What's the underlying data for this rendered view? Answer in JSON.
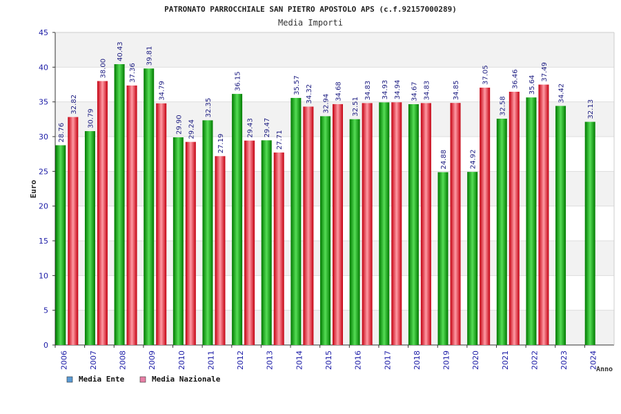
{
  "chart_data": {
    "type": "bar",
    "title": "PATRONATO PARROCCHIALE SAN PIETRO APOSTOLO APS (c.f.92157000289)",
    "subtitle": "Media Importi",
    "ylabel": "Euro",
    "xlabel": "Anno",
    "ylim": [
      0,
      45
    ],
    "yticks": [
      "0",
      "5",
      "10",
      "15",
      "20",
      "25",
      "30",
      "35",
      "40",
      "45"
    ],
    "categories": [
      "2006",
      "2007",
      "2008",
      "2009",
      "2010",
      "2011",
      "2012",
      "2013",
      "2014",
      "2015",
      "2016",
      "2017",
      "2018",
      "2019",
      "2020",
      "2021",
      "2022",
      "2023",
      "2024"
    ],
    "series": [
      {
        "name": "Media Ente",
        "values": [
          28.76,
          30.79,
          40.43,
          39.81,
          29.9,
          32.35,
          36.15,
          29.47,
          35.57,
          32.94,
          32.51,
          34.93,
          34.67,
          24.88,
          24.92,
          32.58,
          35.64,
          34.42,
          32.13
        ],
        "labels": [
          "28.76",
          "30.79",
          "40.43",
          "39.81",
          "29.90",
          "32.35",
          "36.15",
          "29.47",
          "35.57",
          "32.94",
          "32.51",
          "34.93",
          "34.67",
          "24.88",
          "24.92",
          "32.58",
          "35.64",
          "34.42",
          "32.13"
        ]
      },
      {
        "name": "Media Nazionale",
        "values": [
          32.82,
          38.0,
          37.36,
          34.79,
          29.24,
          27.19,
          29.43,
          27.71,
          34.32,
          34.68,
          34.83,
          34.94,
          34.83,
          34.85,
          37.05,
          36.46,
          37.49,
          null,
          null
        ],
        "labels": [
          "32.82",
          "38.00",
          "37.36",
          "34.79",
          "29.24",
          "27.19",
          "29.43",
          "27.71",
          "34.32",
          "34.68",
          "34.83",
          "34.94",
          "34.83",
          "34.85",
          "37.05",
          "36.46",
          "37.49",
          null,
          null
        ]
      }
    ],
    "legend": [
      {
        "label": "Media Ente",
        "color": "#5b9bd5"
      },
      {
        "label": "Media Nazionale",
        "color": "#e87fa6"
      }
    ],
    "colors": {
      "ente_dark": "#008a00",
      "ente_light": "#5ce05c",
      "naz_dark": "#cc0011",
      "naz_light": "#ff99a3",
      "band": "#f2f2f2",
      "grid": "#dddddd",
      "axis": "#333333",
      "tick_text": "#1a1aa6"
    },
    "grid": true,
    "legend_position": "bottom-left"
  }
}
